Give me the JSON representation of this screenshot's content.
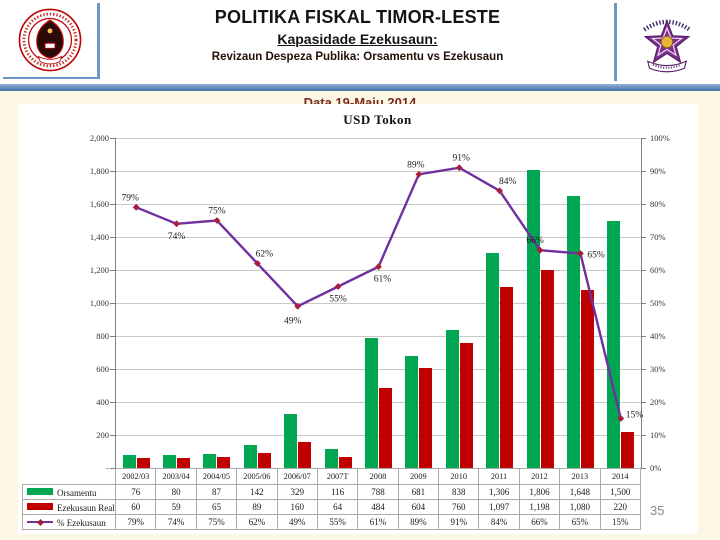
{
  "slide": {
    "title": "POLITIKA FISKAL TIMOR-LESTE",
    "subtitle": "Kapasidade Ezekusaun:",
    "subheading": "Revizaun Despeza Publika: Orsamentu vs Ezekusaun",
    "date_line": "Data 19-Maiu 2014",
    "page_number": "35",
    "logos": {
      "left": "republica-democratica-timor-leste-seal",
      "right": "ministerio-financas-star-emblem"
    },
    "accent_colors": {
      "header_band_blue": "#4F81BD",
      "background_cream": "#FBF7E4"
    }
  },
  "chart_data": {
    "type": "bar",
    "subtype": "combo bar + line, dual axis",
    "title": "USD Tokon",
    "categories": [
      "2002/03",
      "2003/04",
      "2004/05",
      "2005/06",
      "2006/07",
      "2007T",
      "2008",
      "2009",
      "2010",
      "2011",
      "2012",
      "2013",
      "2014"
    ],
    "series": [
      {
        "name": "Orsamentu",
        "kind": "bar",
        "axis": "left",
        "color": "#00A651",
        "values": [
          76,
          80,
          87,
          142,
          329,
          116,
          788,
          681,
          838,
          1306,
          1806,
          1648,
          1500
        ]
      },
      {
        "name": "Ezekusaun Real",
        "kind": "bar",
        "axis": "left",
        "color": "#C00000",
        "values": [
          60,
          59,
          65,
          89,
          160,
          64,
          484,
          604,
          760,
          1097,
          1198,
          1080,
          220
        ]
      },
      {
        "name": "% Ezekusaun",
        "kind": "line",
        "axis": "right",
        "color": "#7030A0",
        "marker_color": "#A91E3C",
        "values": [
          79,
          74,
          75,
          62,
          49,
          55,
          61,
          89,
          91,
          84,
          66,
          65,
          15
        ],
        "point_labels": [
          "79%",
          "74%",
          "75%",
          "62%",
          "49%",
          "55%",
          "61%",
          "89%",
          "91%",
          "84%",
          "66%",
          "65%",
          "15%"
        ]
      }
    ],
    "left_axis": {
      "min": 0,
      "max": 2000,
      "step": 200,
      "tick_labels": [
        "-",
        "200",
        "400",
        "600",
        "800",
        "1,000",
        "1,200",
        "1,400",
        "1,600",
        "1,800",
        "2,000"
      ]
    },
    "right_axis": {
      "min": 0,
      "max": 100,
      "step": 10,
      "tick_labels": [
        "0%",
        "10%",
        "20%",
        "30%",
        "40%",
        "50%",
        "60%",
        "70%",
        "80%",
        "90%",
        "100%"
      ]
    },
    "grid": true,
    "legend_position": "left column of data table"
  },
  "table": {
    "corner_label": "",
    "columns": [
      "2002/03",
      "2003/04",
      "2004/05",
      "2005/06",
      "2006/07",
      "2007T",
      "2008",
      "2009",
      "2010",
      "2011",
      "2012",
      "2013",
      "2014"
    ],
    "rows": [
      {
        "name": "Orsamentu",
        "swatch": "green-bar",
        "cells": [
          "76",
          "80",
          "87",
          "142",
          "329",
          "116",
          "788",
          "681",
          "838",
          "1,306",
          "1,806",
          "1,648",
          "1,500"
        ]
      },
      {
        "name": "Ezekusaun Real",
        "swatch": "red-bar",
        "cells": [
          "60",
          "59",
          "65",
          "89",
          "160",
          "64",
          "484",
          "604",
          "760",
          "1,097",
          "1,198",
          "1,080",
          "220"
        ]
      },
      {
        "name": "% Ezekusaun",
        "swatch": "purple-line-marker",
        "cells": [
          "79%",
          "74%",
          "75%",
          "62%",
          "49%",
          "55%",
          "61%",
          "89%",
          "91%",
          "84%",
          "66%",
          "65%",
          "15%"
        ]
      }
    ]
  }
}
